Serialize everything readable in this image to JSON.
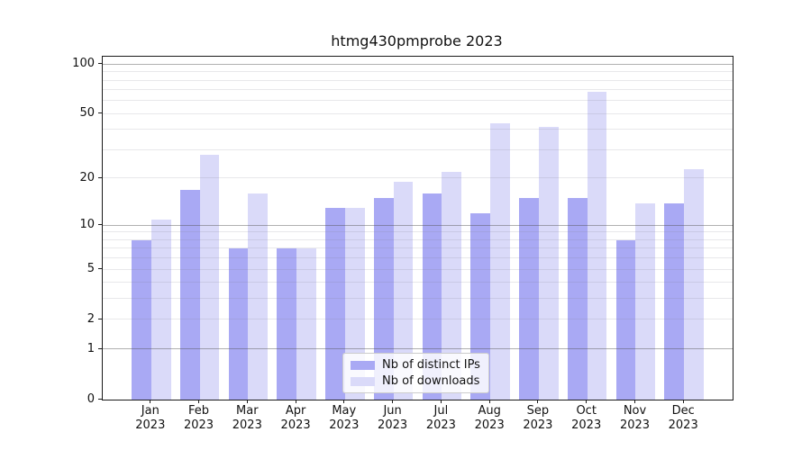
{
  "chart_data": {
    "type": "bar",
    "title": "htmg430pmprobe 2023",
    "categories": [
      "Jan 2023",
      "Feb 2023",
      "Mar 2023",
      "Apr 2023",
      "May 2023",
      "Jun 2023",
      "Jul 2023",
      "Aug 2023",
      "Sep 2023",
      "Oct 2023",
      "Nov 2023",
      "Dec 2023"
    ],
    "series": [
      {
        "name": "Nb of distinct IPs",
        "color": "#a9a9f4",
        "values": [
          8,
          17,
          7,
          7,
          13,
          15,
          16,
          12,
          15,
          15,
          8,
          14
        ]
      },
      {
        "name": "Nb of downloads",
        "color": "#dadaf9",
        "values": [
          11,
          28,
          16,
          7,
          13,
          19,
          22,
          44,
          42,
          68,
          14,
          23
        ]
      }
    ],
    "xlabel": "",
    "ylabel": "",
    "yscale": "log1p",
    "yticks": [
      0,
      1,
      2,
      5,
      10,
      20,
      50,
      100
    ],
    "ylim": [
      0,
      112
    ],
    "grid": "on",
    "legend_position": "lower center"
  },
  "colors": {
    "spine": "#1a1a1a",
    "grid_major": "#b0b0b0",
    "grid_minor": "#e7e7ea",
    "legend_border": "#cccccc"
  }
}
